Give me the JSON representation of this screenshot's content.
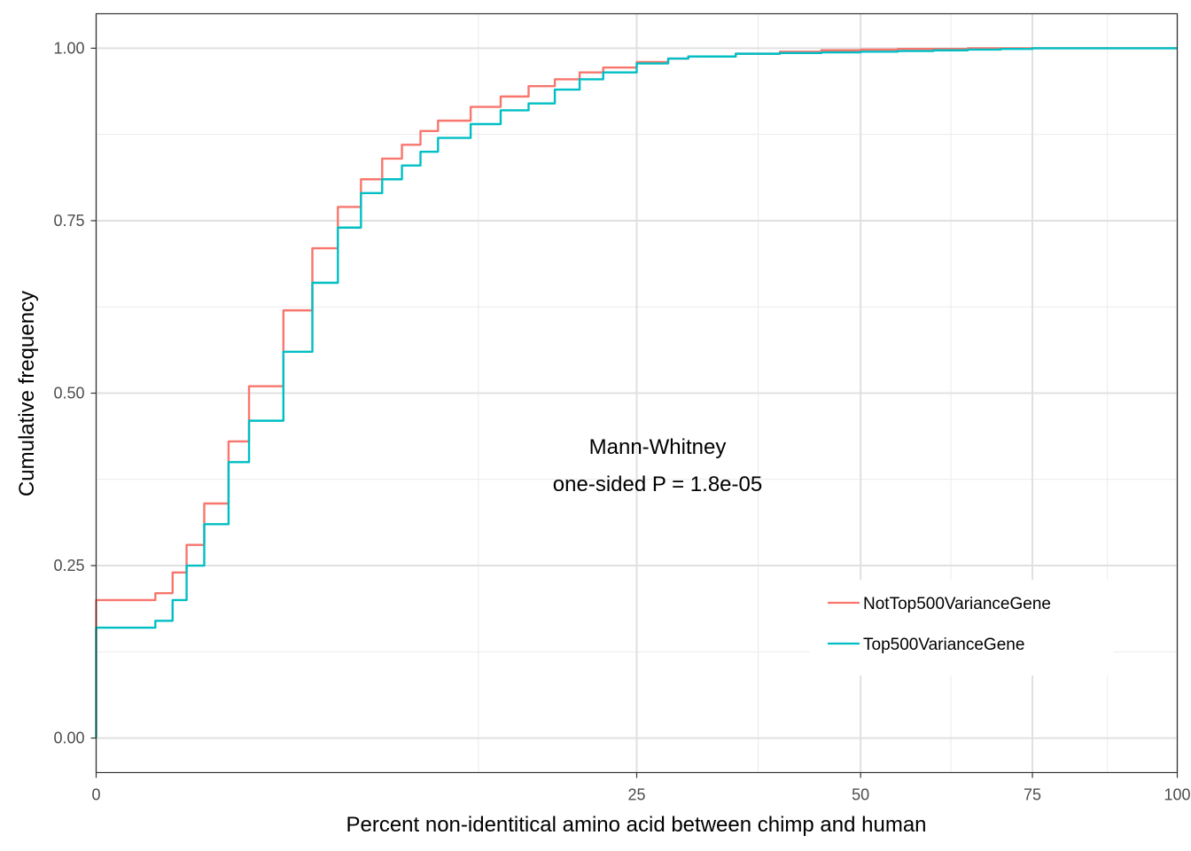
{
  "chart_data": {
    "type": "line",
    "xlabel": "Percent non-identitical amino acid between chimp and human",
    "ylabel": "Cumulative frequency",
    "x_scale": "sqrt",
    "xlim": [
      0,
      100
    ],
    "ylim": [
      -0.05,
      1.05
    ],
    "x_ticks": [
      0,
      25,
      50,
      75,
      100
    ],
    "x_tick_labels": [
      "0",
      "25",
      "50",
      "75",
      "100"
    ],
    "y_ticks": [
      0,
      0.25,
      0.5,
      0.75,
      1
    ],
    "y_tick_labels": [
      "0.00",
      "0.25",
      "0.50",
      "0.75",
      "1.00"
    ],
    "grid": true,
    "legend_position": "bottom-right",
    "annotation": [
      "Mann-Whitney",
      "one-sided P = 1.8e-05"
    ],
    "series": [
      {
        "name": "NotTop500VarianceGene",
        "color": "#F8766D",
        "x": [
          0,
          0.1,
          0.3,
          0.5,
          0.7,
          1,
          1.5,
          2,
          3,
          4,
          5,
          6,
          7,
          8,
          9,
          10,
          12,
          14,
          16,
          18,
          20,
          22,
          25,
          28,
          30,
          35,
          40,
          45,
          50,
          55,
          60,
          65,
          70,
          75,
          80,
          90,
          100
        ],
        "y": [
          0.2,
          0.2,
          0.21,
          0.24,
          0.28,
          0.34,
          0.43,
          0.51,
          0.62,
          0.71,
          0.77,
          0.81,
          0.84,
          0.86,
          0.88,
          0.895,
          0.915,
          0.93,
          0.945,
          0.955,
          0.965,
          0.972,
          0.98,
          0.985,
          0.988,
          0.992,
          0.995,
          0.997,
          0.998,
          0.999,
          0.999,
          1.0,
          1.0,
          1.0,
          1.0,
          1.0,
          1.0
        ]
      },
      {
        "name": "Top500VarianceGene",
        "color": "#00BFC4",
        "x": [
          0,
          0.1,
          0.3,
          0.5,
          0.7,
          1,
          1.5,
          2,
          3,
          4,
          5,
          6,
          7,
          8,
          9,
          10,
          12,
          14,
          16,
          18,
          20,
          22,
          25,
          28,
          30,
          35,
          40,
          45,
          50,
          55,
          60,
          65,
          70,
          75,
          80,
          90,
          100
        ],
        "y": [
          0.16,
          0.16,
          0.17,
          0.2,
          0.25,
          0.31,
          0.4,
          0.46,
          0.56,
          0.66,
          0.74,
          0.79,
          0.81,
          0.83,
          0.85,
          0.87,
          0.89,
          0.91,
          0.92,
          0.94,
          0.955,
          0.965,
          0.978,
          0.985,
          0.988,
          0.992,
          0.993,
          0.994,
          0.995,
          0.996,
          0.997,
          0.998,
          0.999,
          1.0,
          1.0,
          1.0,
          1.0
        ]
      }
    ]
  }
}
